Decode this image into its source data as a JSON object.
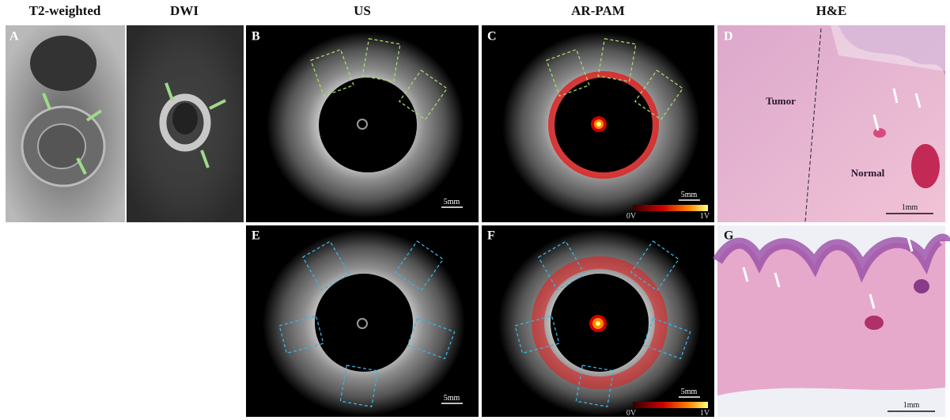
{
  "column_headers": [
    "T2-weighted",
    "DWI",
    "US",
    "AR-PAM",
    "H&E"
  ],
  "panel_labels": [
    "A",
    "B",
    "C",
    "D",
    "E",
    "F",
    "G"
  ],
  "panel_d": {
    "tumor_label": "Tumor",
    "normal_label": "Normal"
  },
  "scale_bars": {
    "B": "5mm",
    "C": "5mm",
    "D": "1mm",
    "E": "5mm",
    "F": "5mm",
    "G": "1mm"
  },
  "colorbar": {
    "min_label": "0V",
    "max_label": "1V"
  }
}
